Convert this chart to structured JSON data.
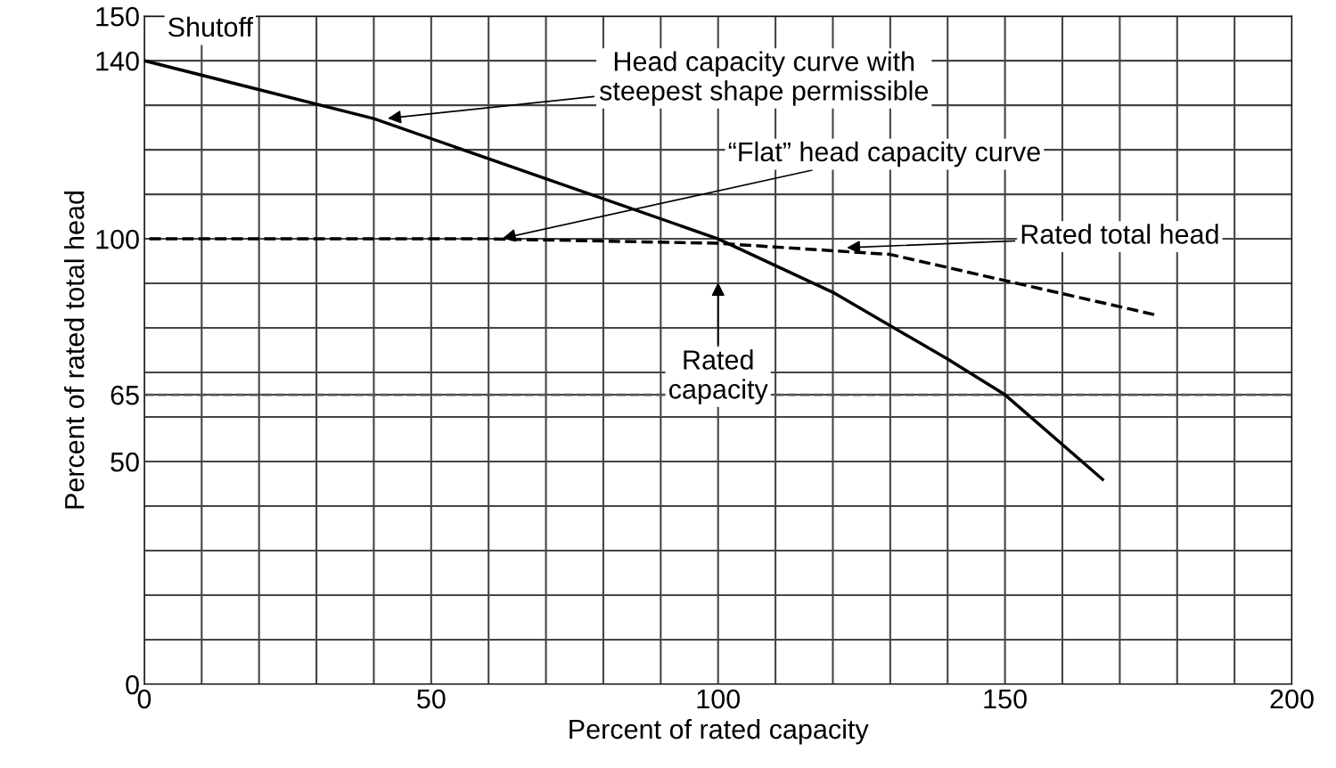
{
  "chart_data": {
    "type": "line",
    "xlabel": "Percent of rated capacity",
    "ylabel": "Percent of rated total head",
    "xlim": [
      0,
      200
    ],
    "ylim": [
      0,
      150
    ],
    "xticks": [
      0,
      {
        "value": 10,
        "label": null
      },
      {
        "value": 20,
        "label": null
      },
      {
        "value": 30,
        "label": null
      },
      {
        "value": 40,
        "label": null
      },
      50,
      {
        "value": 60,
        "label": null
      },
      {
        "value": 70,
        "label": null
      },
      {
        "value": 80,
        "label": null
      },
      {
        "value": 90,
        "label": null
      },
      100,
      {
        "value": 110,
        "label": null
      },
      {
        "value": 120,
        "label": null
      },
      {
        "value": 130,
        "label": null
      },
      {
        "value": 140,
        "label": null
      },
      150,
      {
        "value": 160,
        "label": null
      },
      {
        "value": 170,
        "label": null
      },
      {
        "value": 180,
        "label": null
      },
      {
        "value": 190,
        "label": null
      },
      200
    ],
    "yticks": [
      0,
      {
        "value": 10,
        "label": null
      },
      {
        "value": 20,
        "label": null
      },
      {
        "value": 30,
        "label": null
      },
      {
        "value": 40,
        "label": null
      },
      50,
      {
        "value": 60,
        "label": null
      },
      65,
      {
        "value": 70,
        "label": null
      },
      {
        "value": 80,
        "label": null
      },
      {
        "value": 90,
        "label": null
      },
      100,
      {
        "value": 110,
        "label": null
      },
      {
        "value": 120,
        "label": null
      },
      {
        "value": 130,
        "label": null
      },
      140,
      150
    ],
    "grid": true,
    "marker": "none",
    "series": [
      {
        "color": "#000000",
        "x": [
          0,
          40,
          100,
          120,
          140,
          150,
          167
        ],
        "values": [
          140,
          127,
          100,
          88,
          73,
          65,
          46
        ],
        "line_style": "solid"
      },
      {
        "color": "#000000",
        "x": [
          0,
          60,
          100,
          130,
          176
        ],
        "values": [
          100,
          100,
          99,
          96.5,
          83
        ],
        "line_style": "dashed"
      }
    ],
    "ref_lines": [
      {
        "axis": "y",
        "value": 65,
        "label": null,
        "color": "#555555",
        "line_style": "dashed"
      }
    ],
    "annotations": [
      {
        "text": "Shutoff",
        "x": 0,
        "y": 140
      },
      {
        "text": "Head capacity curve with\nsteepest shape permissible",
        "x": 42,
        "y": 127
      },
      {
        "text": "“Flat” head capacity curve",
        "x": 62,
        "y": 100
      },
      {
        "text": "Rated total head",
        "x": 122,
        "y": 98
      },
      "Rated\ncapacity"
    ]
  }
}
